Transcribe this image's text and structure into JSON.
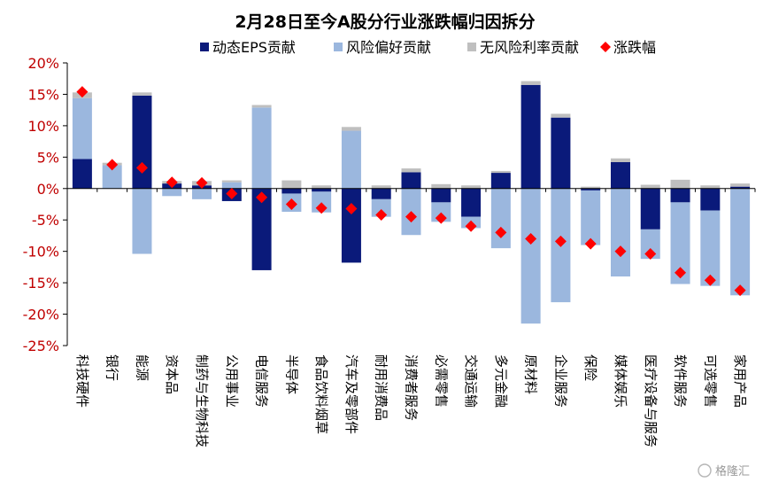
{
  "chart_data": {
    "type": "bar",
    "stacked": true,
    "title": "2月28日至今A股分行业涨跌幅归因拆分",
    "categories": [
      "科技硬件",
      "银行",
      "能源",
      "资本品",
      "制药与生物科技",
      "公用事业",
      "电信服务",
      "半导体",
      "食品饮料烟草",
      "汽车及零部件",
      "耐用消费品",
      "消费者服务",
      "必需零售",
      "交通运输",
      "多元金融",
      "原材料",
      "企业服务",
      "保险",
      "媒体娱乐",
      "医疗设备与服务",
      "软件服务",
      "可选零售",
      "家用产品"
    ],
    "series": [
      {
        "name": "动态EPS贡献",
        "color": "#0a1a7a",
        "values": [
          4.7,
          0,
          14.8,
          0.8,
          0.5,
          -2.0,
          -13.0,
          -0.8,
          -0.5,
          -11.8,
          -1.7,
          2.6,
          -2.2,
          -4.5,
          2.5,
          16.5,
          11.3,
          -0.3,
          4.2,
          -6.5,
          -2.2,
          -3.5,
          0.3
        ]
      },
      {
        "name": "风险偏好贡献",
        "color": "#9bb7de",
        "values": [
          9.7,
          3.7,
          -10.4,
          -1.2,
          -1.7,
          1.0,
          12.9,
          -2.9,
          -3.3,
          9.2,
          -2.8,
          -7.4,
          -3.1,
          -1.8,
          -9.5,
          -21.5,
          -18.1,
          -8.7,
          -14.0,
          -4.7,
          -13.0,
          -12.0,
          -17.0
        ]
      },
      {
        "name": "无风险利率贡献",
        "color": "#bfbfbf",
        "values": [
          0.9,
          0.4,
          0.5,
          0.4,
          0.7,
          0.3,
          0.4,
          1.3,
          0.5,
          0.6,
          0.5,
          0.6,
          0.7,
          0.5,
          0.3,
          0.6,
          0.6,
          0.3,
          0.6,
          0.6,
          1.4,
          0.5,
          0.5
        ]
      }
    ],
    "line_series": {
      "name": "涨跌幅",
      "color": "#ff0000",
      "values": [
        15.4,
        3.8,
        3.3,
        1.0,
        0.9,
        -0.8,
        -1.4,
        -2.5,
        -3.1,
        -3.2,
        -4.2,
        -4.5,
        -4.7,
        -6.0,
        -7.0,
        -8.0,
        -8.4,
        -8.8,
        -10.0,
        -10.4,
        -13.4,
        -14.6,
        -16.2
      ]
    },
    "ylim": [
      -25,
      20
    ],
    "yticks": [
      -25,
      -20,
      -15,
      -10,
      -5,
      0,
      5,
      10,
      15,
      20
    ],
    "ytick_labels": [
      "-25%",
      "-20%",
      "-15%",
      "-10%",
      "-5%",
      "0%",
      "5%",
      "10%",
      "15%",
      "20%"
    ],
    "legend_position": "top",
    "grid": false
  },
  "watermark": {
    "text": "格隆汇"
  }
}
